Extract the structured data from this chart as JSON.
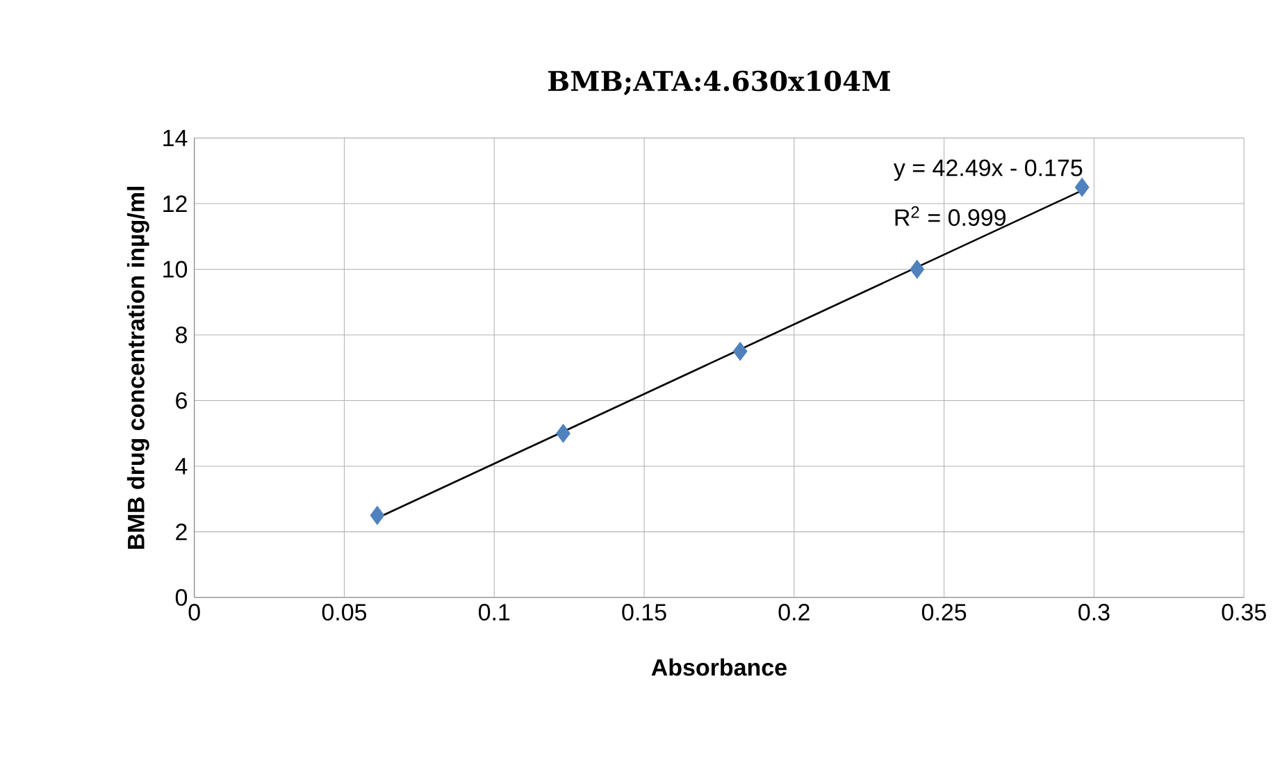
{
  "chart_data": {
    "type": "scatter",
    "title": "BMB;ATA:4.630x104M",
    "xlabel": "Absorbance",
    "ylabel": "BMB drug concentration inµg/ml",
    "series": [
      {
        "color": "#4f81bd",
        "x": [
          0.061,
          0.123,
          0.182,
          0.241,
          0.296
        ],
        "values": [
          2.5,
          5,
          7.5,
          10,
          12.5
        ]
      },
      {
        "type": "line",
        "color": "#000000",
        "marker": "none",
        "x": [
          0.061,
          0.296
        ],
        "values": [
          2.42,
          12.4
        ]
      }
    ],
    "annotations": [
      "y = 42.49x - 0.175",
      "R$^{2}$ = 0.999"
    ],
    "xlim": [
      0,
      0.35
    ],
    "xticks": [
      0,
      0.05,
      0.1,
      0.15,
      0.2,
      0.25,
      0.3,
      0.35
    ],
    "ylim": [
      0,
      14
    ],
    "yticks": [
      0,
      2,
      4,
      6,
      8,
      10,
      12,
      14
    ],
    "grid": true,
    "marker": "diamond",
    "line_style": "solid"
  }
}
